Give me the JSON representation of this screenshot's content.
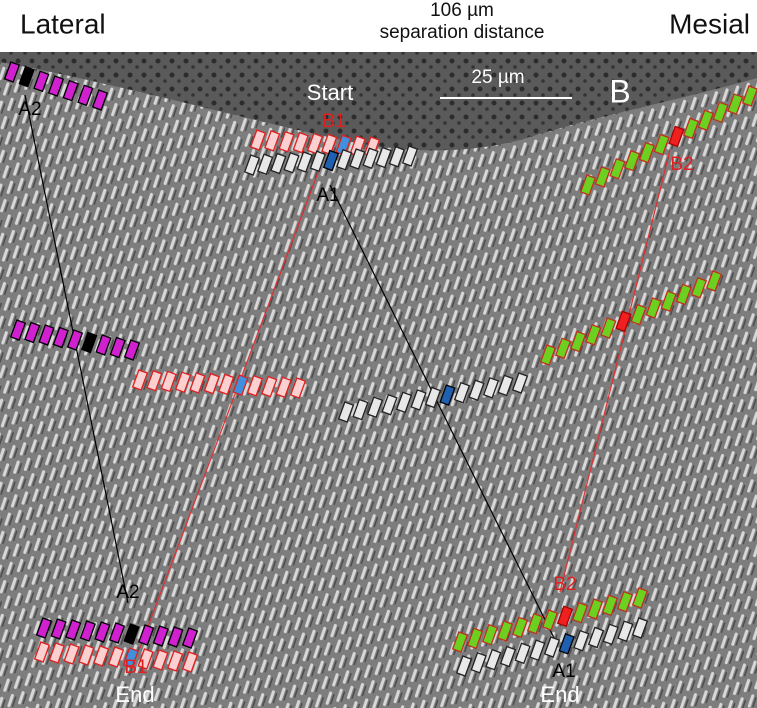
{
  "header": {
    "left": "Lateral",
    "distance": "106 µm",
    "distance_caption": "separation distance",
    "right": "Mesial"
  },
  "panel": {
    "letter": "B",
    "scale_bar": "25 µm",
    "start": "Start",
    "end_left": "End",
    "end_right": "End"
  },
  "labels": [
    "A2",
    "B1",
    "A1",
    "B2",
    "A2",
    "B2",
    "B1",
    "A1"
  ]
}
